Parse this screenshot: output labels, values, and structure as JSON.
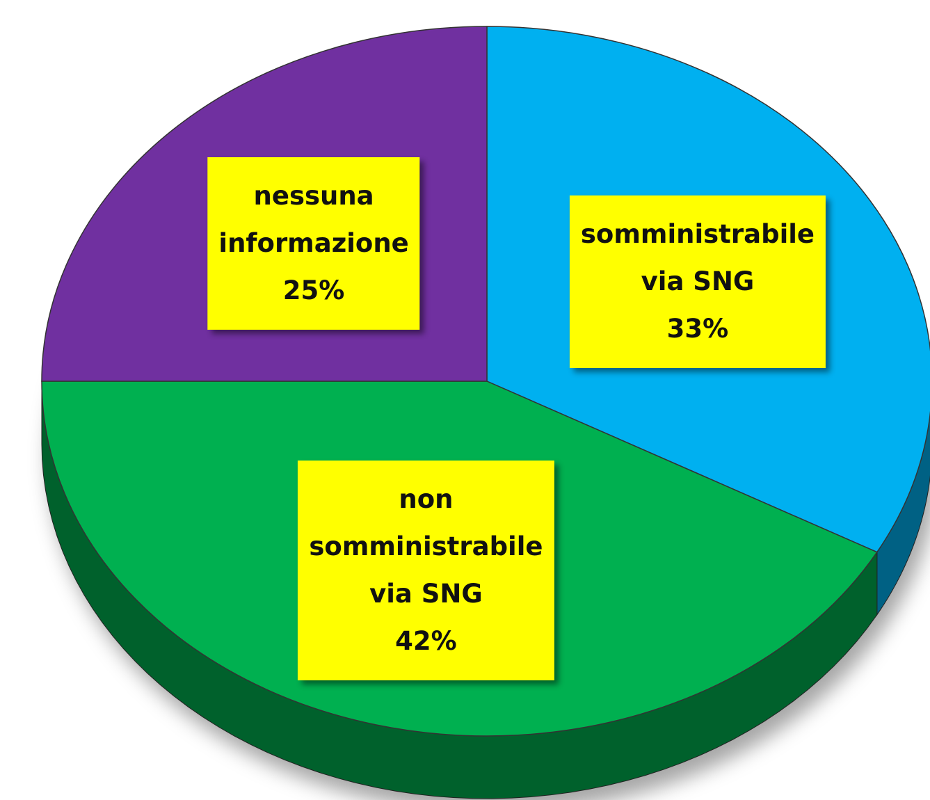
{
  "chart_data": {
    "type": "pie",
    "categories": [
      "somministrabile\nvia SNG",
      "non\nsomministrabile\nvia SNG",
      "nessuna\ninformazione"
    ],
    "values": [
      33,
      42,
      25
    ],
    "value_labels": [
      "33%",
      "42%",
      "25%"
    ],
    "colors": [
      "#00b0f0",
      "#00b050",
      "#7030a0"
    ],
    "label_color": "#ffff00"
  }
}
